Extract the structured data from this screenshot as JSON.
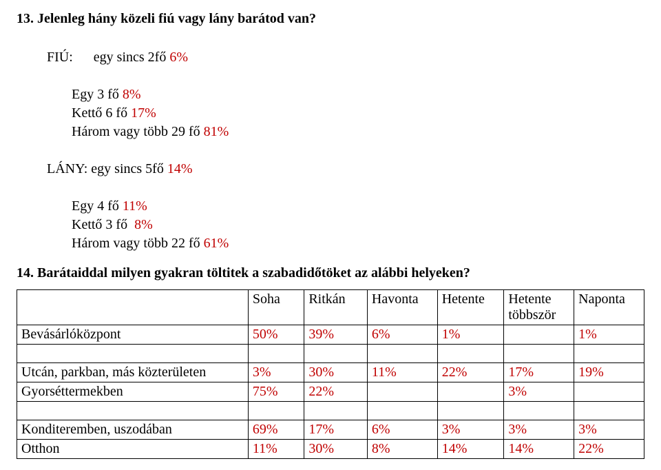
{
  "q13": {
    "title": "13. Jelenleg hány közeli fiú vagy lány barátod van?",
    "fiu_label": "FIÚ:",
    "fiu_items": [
      {
        "text": "egy sincs 2fő ",
        "pct": "6%"
      },
      {
        "text": "Egy 3 fő ",
        "pct": "8%"
      },
      {
        "text": "Kettő 6 fő ",
        "pct": "17%"
      },
      {
        "text": "Három vagy több 29 fő ",
        "pct": "81%"
      }
    ],
    "lany_label": "LÁNY:",
    "lany_items": [
      {
        "text": " egy sincs 5fő ",
        "pct": "14%"
      },
      {
        "text": "Egy 4 fő ",
        "pct": "11%"
      },
      {
        "text": "Kettő 3 fő  ",
        "pct": "8%"
      },
      {
        "text": "Három vagy több 22 fő ",
        "pct": "61%"
      }
    ]
  },
  "q14": {
    "title": "14. Barátaiddal milyen gyakran töltitek a szabadidőtöket az alábbi helyeken?",
    "headers": [
      "",
      "Soha",
      "Ritkán",
      "Havonta",
      "Hetente",
      "Hetente többször",
      "Naponta"
    ],
    "rows": [
      {
        "label": "Bevásárlóközpont",
        "c": [
          "50%",
          "39%",
          "6%",
          "1%",
          "",
          "1%"
        ]
      },
      {
        "spacer": true
      },
      {
        "label": "Utcán, parkban, más közterületen",
        "c": [
          "3%",
          "30%",
          "11%",
          "22%",
          "17%",
          "19%"
        ]
      },
      {
        "label": "Gyorséttermekben",
        "c": [
          "75%",
          "22%",
          "",
          "",
          "3%",
          ""
        ]
      },
      {
        "spacer": true
      },
      {
        "label": "Konditeremben, uszodában",
        "c": [
          "69%",
          "17%",
          "6%",
          "3%",
          "3%",
          "3%"
        ]
      },
      {
        "label": "Otthon",
        "c": [
          "11%",
          "30%",
          "8%",
          "14%",
          "14%",
          "22%"
        ]
      }
    ],
    "pct_color": "#c00000"
  }
}
